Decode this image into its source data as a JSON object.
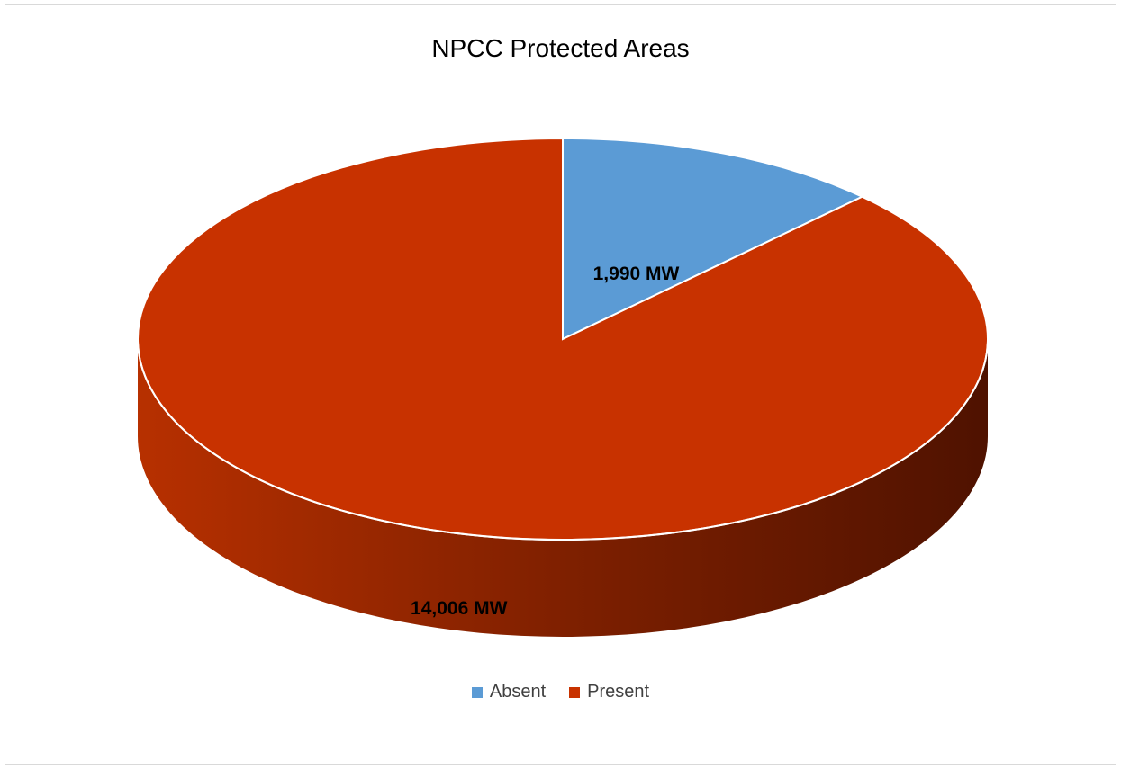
{
  "chart_data": {
    "type": "pie",
    "title": "NPCC Protected Areas",
    "style": "3d",
    "legend_position": "bottom",
    "slices": [
      {
        "label": "Absent",
        "value": 1990,
        "data_label": "1,990 MW",
        "color": "#5b9bd5"
      },
      {
        "label": "Present",
        "value": 14006,
        "data_label": "14,006 MW",
        "color": "#c83200"
      }
    ]
  }
}
